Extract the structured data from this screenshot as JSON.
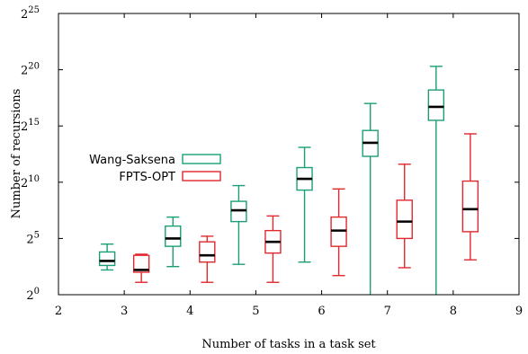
{
  "chart_data": {
    "type": "box",
    "xlabel": "Number of tasks in a task set",
    "ylabel": "Number of recursions",
    "xlim": [
      2,
      9
    ],
    "ylim_log2": [
      0,
      25
    ],
    "x_ticks": [
      "2",
      "3",
      "4",
      "5",
      "6",
      "7",
      "8",
      "9"
    ],
    "y_ticks": [
      {
        "base": "2",
        "exp": "0"
      },
      {
        "base": "2",
        "exp": "5"
      },
      {
        "base": "2",
        "exp": "10"
      },
      {
        "base": "2",
        "exp": "15"
      },
      {
        "base": "2",
        "exp": "20"
      },
      {
        "base": "2",
        "exp": "25"
      }
    ],
    "scale": "log2",
    "grid": false,
    "legend_position": "left",
    "series": [
      {
        "name": "Wang-Saksena",
        "color": "#1b9e77",
        "boxes": [
          {
            "x": 3,
            "min": 2.2,
            "q1": 2.6,
            "median": 3.0,
            "q3": 3.8,
            "max": 4.5
          },
          {
            "x": 4,
            "min": 2.5,
            "q1": 4.3,
            "median": 5.0,
            "q3": 6.1,
            "max": 6.9
          },
          {
            "x": 5,
            "min": 2.7,
            "q1": 6.5,
            "median": 7.5,
            "q3": 8.3,
            "max": 9.7
          },
          {
            "x": 6,
            "min": 2.9,
            "q1": 9.3,
            "median": 10.3,
            "q3": 11.3,
            "max": 13.1
          },
          {
            "x": 7,
            "min": 0.0,
            "q1": 12.3,
            "median": 13.5,
            "q3": 14.6,
            "max": 17.0
          },
          {
            "x": 8,
            "min": 0.0,
            "q1": 15.5,
            "median": 16.7,
            "q3": 18.2,
            "max": 20.3
          }
        ]
      },
      {
        "name": "FPTS-OPT",
        "color": "#e0282e",
        "boxes": [
          {
            "x": 3,
            "min": 1.1,
            "q1": 2.0,
            "median": 2.2,
            "q3": 3.5,
            "max": 3.6
          },
          {
            "x": 4,
            "min": 1.1,
            "q1": 2.9,
            "median": 3.5,
            "q3": 4.7,
            "max": 5.2
          },
          {
            "x": 5,
            "min": 1.1,
            "q1": 3.7,
            "median": 4.7,
            "q3": 5.7,
            "max": 7.0
          },
          {
            "x": 6,
            "min": 1.7,
            "q1": 4.3,
            "median": 5.7,
            "q3": 6.9,
            "max": 9.4
          },
          {
            "x": 7,
            "min": 2.4,
            "q1": 5.0,
            "median": 6.5,
            "q3": 8.4,
            "max": 11.6
          },
          {
            "x": 8,
            "min": 3.1,
            "q1": 5.6,
            "median": 7.6,
            "q3": 10.1,
            "max": 14.3
          }
        ]
      }
    ]
  }
}
